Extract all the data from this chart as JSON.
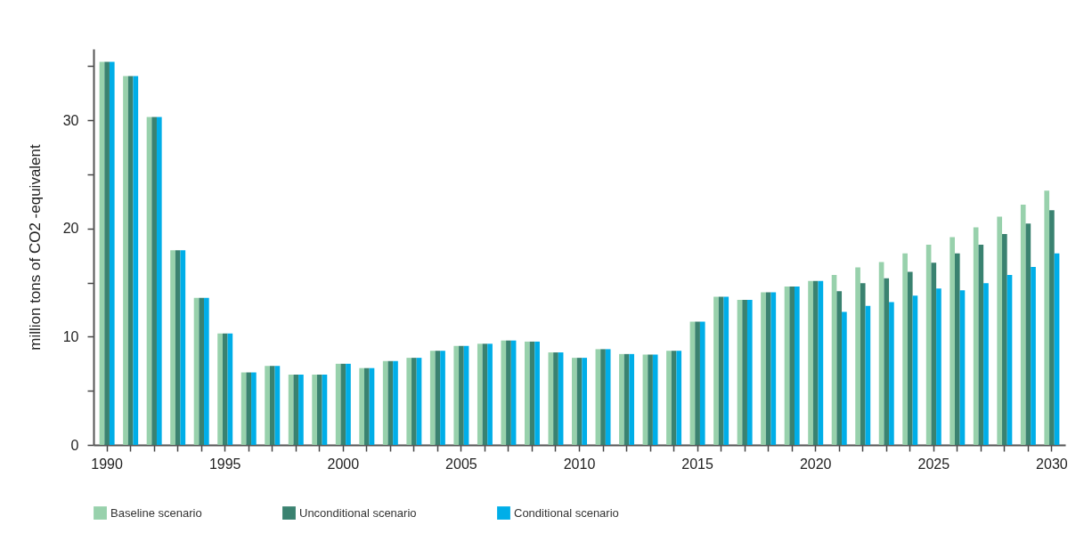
{
  "chart_data": {
    "type": "bar",
    "ylabel": "million tons of CO2 -equivalent",
    "categories": [
      "1990",
      null,
      null,
      null,
      null,
      "1995",
      null,
      null,
      null,
      null,
      "2000",
      null,
      null,
      null,
      null,
      "2005",
      null,
      null,
      null,
      null,
      "2010",
      null,
      null,
      null,
      null,
      "2015",
      null,
      null,
      null,
      null,
      "2020",
      null,
      null,
      null,
      null,
      "2025",
      null,
      null,
      null,
      null,
      "2030"
    ],
    "series": [
      {
        "name": "Baseline scenario",
        "color": "#98d1ac",
        "values": [
          35.4,
          34.1,
          30.3,
          18.0,
          13.6,
          10.3,
          6.7,
          7.3,
          6.5,
          6.5,
          7.5,
          7.1,
          7.75,
          8.05,
          8.7,
          9.15,
          9.35,
          9.65,
          9.55,
          8.55,
          8.05,
          8.85,
          8.4,
          8.35,
          8.7,
          11.4,
          13.7,
          13.4,
          14.1,
          14.65,
          15.15,
          15.7,
          16.4,
          16.9,
          17.7,
          18.5,
          19.2,
          20.1,
          21.1,
          22.2,
          23.5
        ]
      },
      {
        "name": "Unconditional scenario",
        "color": "#3a8270",
        "values": [
          35.4,
          34.1,
          30.3,
          18.0,
          13.6,
          10.3,
          6.7,
          7.3,
          6.5,
          6.5,
          7.5,
          7.1,
          7.75,
          8.05,
          8.7,
          9.15,
          9.35,
          9.65,
          9.55,
          8.55,
          8.05,
          8.85,
          8.4,
          8.35,
          8.7,
          11.4,
          13.7,
          13.4,
          14.1,
          14.65,
          15.15,
          14.2,
          14.95,
          15.4,
          16.0,
          16.85,
          17.7,
          18.5,
          19.5,
          20.45,
          21.7
        ]
      },
      {
        "name": "Conditional scenario",
        "color": "#00aee8",
        "values": [
          35.4,
          34.1,
          30.3,
          18.0,
          13.6,
          10.3,
          6.7,
          7.3,
          6.5,
          6.5,
          7.5,
          7.1,
          7.75,
          8.05,
          8.7,
          9.15,
          9.35,
          9.65,
          9.55,
          8.55,
          8.05,
          8.85,
          8.4,
          8.35,
          8.7,
          11.4,
          13.7,
          13.4,
          14.1,
          14.65,
          15.15,
          12.3,
          12.85,
          13.2,
          13.8,
          14.45,
          14.3,
          14.95,
          15.7,
          16.45,
          17.7
        ]
      }
    ],
    "ylim": [
      0,
      36.6
    ],
    "yticks": [
      0,
      {
        "value": 5,
        "label": null
      },
      10,
      {
        "value": 15,
        "label": null
      },
      20,
      {
        "value": 25,
        "label": null
      },
      30,
      {
        "value": 35,
        "label": null
      }
    ],
    "grid": false,
    "legend": "bottom"
  }
}
